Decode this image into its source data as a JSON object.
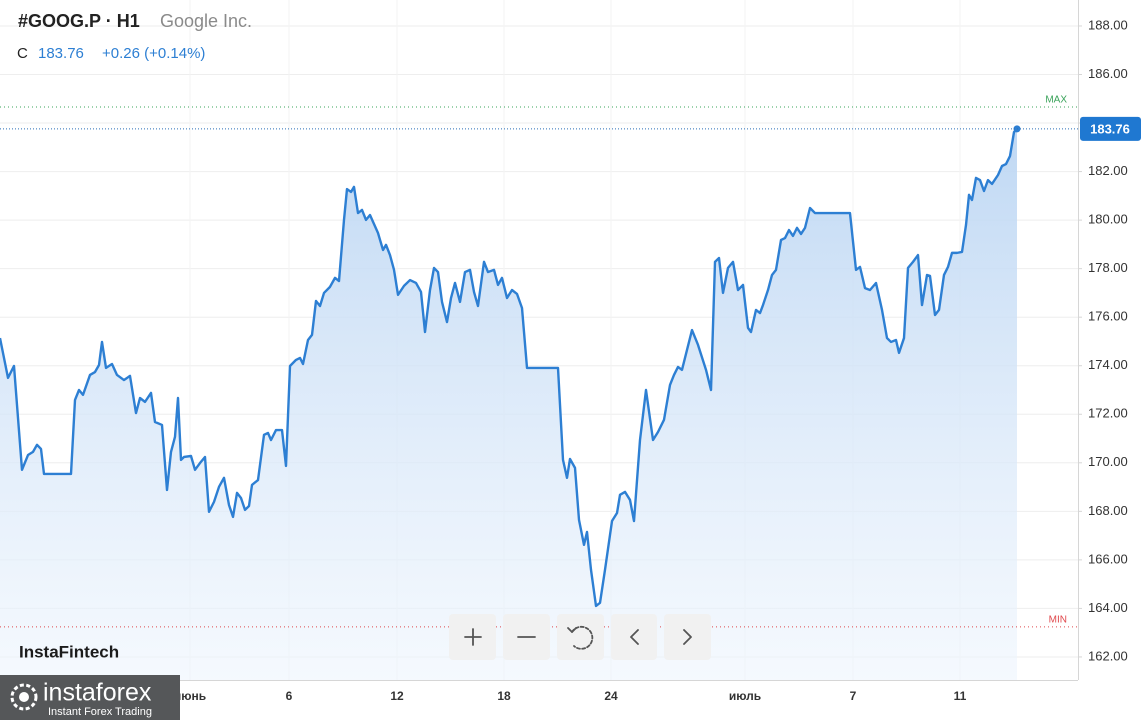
{
  "header": {
    "symbol": "#GOOG.P · H1",
    "company": "Google Inc."
  },
  "quote": {
    "label": "C",
    "close": 183.76,
    "change": "+0.26 (+0.14%)"
  },
  "watermark": "InstaFintech",
  "logo": {
    "name": "instaforex",
    "tagline": "Instant Forex Trading"
  },
  "chart_data": {
    "type": "area",
    "color": "#2d7fd3",
    "grid": true,
    "xlim": [
      0,
      215.6
    ],
    "ylim": [
      161.05,
      189.07
    ],
    "xticks": [
      {
        "value": 38,
        "label": "июнь"
      },
      {
        "value": 57.8,
        "label": "6"
      },
      {
        "value": 79.4,
        "label": "12"
      },
      {
        "value": 100.8,
        "label": "18"
      },
      {
        "value": 122.2,
        "label": "24"
      },
      {
        "value": 149,
        "label": "июль"
      },
      {
        "value": 170.6,
        "label": "7"
      },
      {
        "value": 192,
        "label": "11"
      }
    ],
    "yticks": [
      {
        "value": 162,
        "label": "162.00"
      },
      {
        "value": 164,
        "label": "164.00"
      },
      {
        "value": 166,
        "label": "166.00"
      },
      {
        "value": 168,
        "label": "168.00"
      },
      {
        "value": 170,
        "label": "170.00"
      },
      {
        "value": 172,
        "label": "172.00"
      },
      {
        "value": 174,
        "label": "174.00"
      },
      {
        "value": 176,
        "label": "176.00"
      },
      {
        "value": 178,
        "label": "178.00"
      },
      {
        "value": 180,
        "label": "180.00"
      },
      {
        "value": 182,
        "label": "182.00"
      },
      {
        "value": 184,
        "label": "184.00"
      },
      {
        "value": 186,
        "label": "186.00"
      },
      {
        "value": 188,
        "label": "188.00"
      }
    ],
    "max_line": {
      "label": "MAX",
      "value": 184.66,
      "color": "#3aa35a"
    },
    "min_line": {
      "label": "MIN",
      "value": 163.24,
      "color": "#e0484c"
    },
    "x": [
      0,
      1.6,
      2.8,
      4.4,
      5.6,
      6.6,
      7.4,
      8.2,
      8.8,
      14.2,
      15,
      15.8,
      16.6,
      18,
      19,
      19.8,
      20.4,
      21.2,
      22.4,
      23.4,
      24.8,
      26,
      27.2,
      28,
      29,
      30.2,
      31,
      32.4,
      33.4,
      34.2,
      35,
      35.6,
      36.2,
      36.8,
      38.2,
      39,
      40,
      41,
      41.8,
      42.8,
      43.8,
      44.8,
      45.8,
      46.6,
      47.4,
      48.2,
      49,
      49.8,
      50.4,
      51.6,
      52.8,
      53.6,
      54.2,
      55.2,
      56.4,
      57.2,
      58,
      59.2,
      60,
      60.6,
      61.6,
      62.4,
      63.2,
      64,
      64.8,
      66,
      67,
      67.8,
      68.8,
      69.4,
      70.2,
      70.8,
      71.6,
      72.4,
      73.2,
      74,
      75.6,
      76.6,
      77.2,
      78,
      78.8,
      79.6,
      80.8,
      82,
      83.2,
      84.2,
      85,
      86,
      86.8,
      87.6,
      88.4,
      89.4,
      90.2,
      91,
      92,
      93,
      94,
      94.8,
      95.6,
      96.8,
      97.6,
      98.8,
      99.6,
      100.4,
      101.4,
      102.4,
      103.4,
      104.4,
      105.4,
      111.6,
      112.6,
      113.4,
      114,
      115,
      115.8,
      116.8,
      117.4,
      118.2,
      119.2,
      120,
      121,
      122.4,
      123.4,
      124,
      125,
      126,
      126.8,
      128,
      129.2,
      130.6,
      131.6,
      132.8,
      134,
      134.8,
      135.6,
      136.4,
      137.4,
      138.4,
      139.6,
      141.2,
      142.2,
      143,
      143.8,
      144.6,
      145.6,
      146.6,
      147.6,
      148.6,
      149.6,
      150.2,
      151.2,
      152,
      152.6,
      153.6,
      154.4,
      155.2,
      156.2,
      157,
      157.8,
      158.6,
      159.4,
      160.2,
      161,
      162,
      163,
      170,
      171.2,
      172,
      173,
      174,
      175.2,
      176.4,
      177.4,
      178.2,
      179.2,
      179.8,
      180.8,
      181.6,
      182.6,
      183.6,
      184.4,
      185.4,
      186,
      187,
      187.8,
      188.8,
      189.6,
      190.4,
      191.4,
      192.4,
      193.2,
      193.8,
      194.4,
      195.2,
      196,
      196.8,
      197.6,
      198.4,
      199.6,
      200.4,
      201.2,
      202,
      202.8,
      203.4
    ],
    "values": [
      175.14,
      173.5,
      173.99,
      169.71,
      170.32,
      170.45,
      170.74,
      170.57,
      169.54,
      169.54,
      172.59,
      173.0,
      172.8,
      173.62,
      173.74,
      174.03,
      174.98,
      173.91,
      174.07,
      173.62,
      173.41,
      173.58,
      172.05,
      172.67,
      172.51,
      172.88,
      171.68,
      171.56,
      168.88,
      170.45,
      171.07,
      172.67,
      170.12,
      170.24,
      170.28,
      169.71,
      169.99,
      170.24,
      167.98,
      168.39,
      169.01,
      169.38,
      168.26,
      167.77,
      168.76,
      168.55,
      168.06,
      168.22,
      169.09,
      169.29,
      171.15,
      171.23,
      170.94,
      171.35,
      171.35,
      169.87,
      173.99,
      174.24,
      174.32,
      174.07,
      175.06,
      175.27,
      176.67,
      176.46,
      177.0,
      177.25,
      177.62,
      177.49,
      180.01,
      181.28,
      181.16,
      181.37,
      180.29,
      180.42,
      180.01,
      180.21,
      179.47,
      178.77,
      178.98,
      178.56,
      177.95,
      176.92,
      177.29,
      177.53,
      177.41,
      177.04,
      175.39,
      177.12,
      178.03,
      177.86,
      176.63,
      175.8,
      176.79,
      177.41,
      176.63,
      177.86,
      177.95,
      177.04,
      176.46,
      178.28,
      177.86,
      177.95,
      177.33,
      177.62,
      176.79,
      177.12,
      176.96,
      176.38,
      173.91,
      173.91,
      170.12,
      169.38,
      170.16,
      169.79,
      167.65,
      166.62,
      167.15,
      165.59,
      164.1,
      164.23,
      165.59,
      167.6,
      167.93,
      168.68,
      168.8,
      168.47,
      167.6,
      170.94,
      173.0,
      170.94,
      171.27,
      171.77,
      173.21,
      173.62,
      173.95,
      173.83,
      174.65,
      175.47,
      174.86,
      173.83,
      173.0,
      178.28,
      178.44,
      177.0,
      178.03,
      178.28,
      177.12,
      177.33,
      175.56,
      175.39,
      176.3,
      176.17,
      176.5,
      177.12,
      177.74,
      177.95,
      179.18,
      179.26,
      179.59,
      179.35,
      179.68,
      179.43,
      179.68,
      180.5,
      180.29,
      180.29,
      177.95,
      178.07,
      177.2,
      177.12,
      177.41,
      176.3,
      175.14,
      174.98,
      175.06,
      174.53,
      175.14,
      178.03,
      178.28,
      178.56,
      176.5,
      177.74,
      177.7,
      176.09,
      176.3,
      177.74,
      178.07,
      178.65,
      178.65,
      178.69,
      179.8,
      181.04,
      180.83,
      181.74,
      181.65,
      181.2,
      181.65,
      181.49,
      181.86,
      182.23,
      182.31,
      182.64,
      183.63,
      183.76
    ]
  }
}
